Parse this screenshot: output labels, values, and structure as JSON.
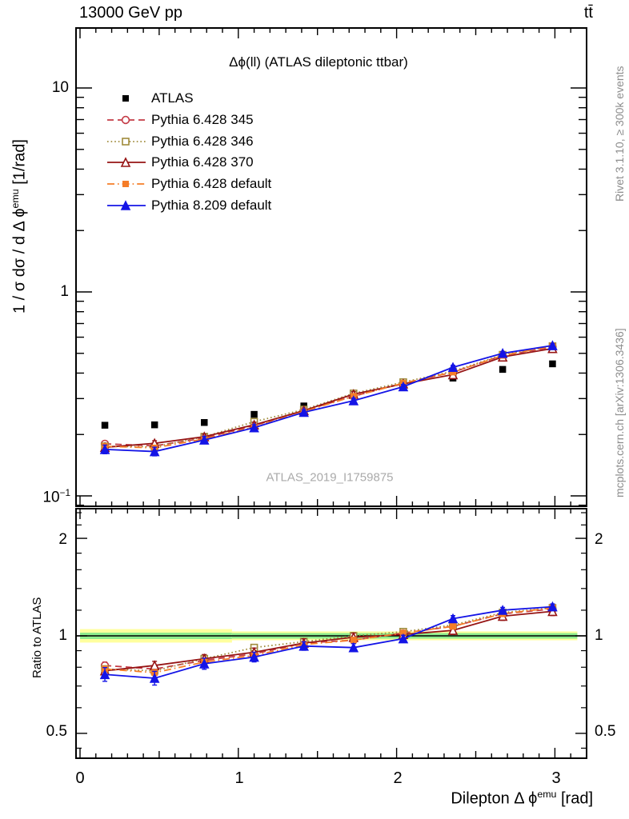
{
  "header": {
    "left": "13000 GeV pp",
    "right": "tt̄"
  },
  "plot_title": "Δϕ(ll) (ATLAS dileptonic ttbar)",
  "watermark": "ATLAS_2019_I1759875",
  "side_notes": {
    "top_right": "Rivet 3.1.10, ≥ 300k events",
    "bottom_right": "mcplots.cern.ch [arXiv:1306.3436]"
  },
  "axes": {
    "x": {
      "label_pre": "Dilepton Δ ϕ",
      "label_sup": "emu",
      "label_post": " [rad]",
      "ticks": [
        "0",
        "1",
        "2",
        "3"
      ]
    },
    "y_top": {
      "label_pre": "1 / σ  dσ / d Δ ϕ",
      "label_sup": "emu",
      "label_post": " [1/rad]",
      "tick10": "10",
      "tick1": "1",
      "tick01_base": "10",
      "tick01_sup": "−1"
    },
    "y_ratio": {
      "label": "Ratio to ATLAS",
      "tick2": "2",
      "tick1": "1",
      "tick05": "0.5"
    }
  },
  "chart_data": {
    "type": "line",
    "title": "Δϕ(ll) (ATLAS dileptonic ttbar)",
    "xlabel": "Dilepton Δϕ^emu [rad]",
    "ylabel_top": "1/σ dσ/dΔϕ^emu [1/rad]",
    "ylabel_ratio": "Ratio to ATLAS",
    "x_log": false,
    "y_top_log": true,
    "y_ratio_log": true,
    "x_range": [
      -0.025,
      3.2
    ],
    "y_top_range": [
      0.089,
      19.6
    ],
    "y_ratio_range": [
      0.42,
      2.47
    ],
    "x": [
      0.157,
      0.471,
      0.785,
      1.1,
      1.414,
      1.728,
      2.042,
      2.356,
      2.67,
      2.985
    ],
    "bin_width_rad": 0.3142,
    "series": [
      {
        "name": "ATLAS",
        "color": "#000000",
        "line": "none",
        "marker": "square-filled",
        "values": [
          0.222,
          0.223,
          0.229,
          0.251,
          0.276,
          0.318,
          0.35,
          0.378,
          0.417,
          0.444
        ]
      },
      {
        "name": "Pythia 6.428 345",
        "color": "#c43b46",
        "line": "dashed",
        "marker": "circle-open",
        "values": [
          0.18,
          0.176,
          0.192,
          0.221,
          0.262,
          0.308,
          0.357,
          0.404,
          0.488,
          0.537
        ],
        "ratio": [
          0.81,
          0.79,
          0.84,
          0.88,
          0.95,
          0.97,
          1.02,
          1.07,
          1.17,
          1.21
        ],
        "err": 0.025
      },
      {
        "name": "Pythia 6.428 346",
        "color": "#a08c3c",
        "line": "dotted",
        "marker": "square-open",
        "values": [
          0.175,
          0.174,
          0.195,
          0.231,
          0.265,
          0.318,
          0.361,
          0.408,
          0.492,
          0.542
        ],
        "ratio": [
          0.79,
          0.78,
          0.85,
          0.92,
          0.96,
          1.0,
          1.03,
          1.08,
          1.18,
          1.22
        ],
        "err": 0.02
      },
      {
        "name": "Pythia 6.428 370",
        "color": "#961414",
        "line": "solid",
        "marker": "triangle-open",
        "values": [
          0.173,
          0.181,
          0.195,
          0.223,
          0.262,
          0.315,
          0.354,
          0.393,
          0.48,
          0.528
        ],
        "ratio": [
          0.78,
          0.81,
          0.85,
          0.89,
          0.95,
          0.99,
          1.01,
          1.04,
          1.15,
          1.19
        ],
        "err": 0.03
      },
      {
        "name": "Pythia 6.428 default",
        "color": "#f57d28",
        "line": "dashdot",
        "marker": "square-filled",
        "values": [
          0.175,
          0.172,
          0.19,
          0.218,
          0.259,
          0.308,
          0.357,
          0.404,
          0.488,
          0.542
        ],
        "ratio": [
          0.79,
          0.77,
          0.83,
          0.87,
          0.94,
          0.97,
          1.02,
          1.07,
          1.17,
          1.22
        ],
        "err": 0.02
      },
      {
        "name": "Pythia 8.209 default",
        "color": "#1414e6",
        "line": "solid",
        "marker": "triangle-filled",
        "values": [
          0.169,
          0.165,
          0.188,
          0.216,
          0.257,
          0.293,
          0.343,
          0.427,
          0.5,
          0.546
        ],
        "ratio": [
          0.76,
          0.74,
          0.82,
          0.86,
          0.93,
          0.92,
          0.98,
          1.13,
          1.2,
          1.23
        ],
        "err_array": [
          0.05,
          0.05,
          0.04,
          0.035,
          0.03,
          0.028,
          0.025,
          0.022,
          0.02,
          0.02
        ]
      }
    ],
    "ratio_band": {
      "unity_line_color": "#000000",
      "yellow_color": "#ffff9e",
      "green_color": "#8dec8d",
      "segments": [
        {
          "x0": 0.0,
          "x1": 0.96,
          "yellow_half": 0.049,
          "green_half": 0.023
        },
        {
          "x0": 0.96,
          "x1": 3.1416,
          "yellow_half": 0.032,
          "green_half": 0.02
        }
      ]
    }
  }
}
